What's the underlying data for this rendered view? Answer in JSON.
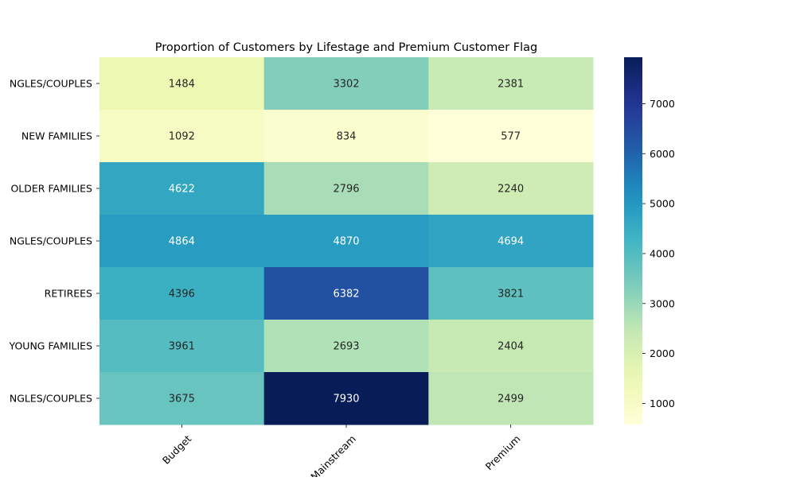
{
  "chart_data": {
    "type": "heatmap",
    "title": "Proportion of Customers by Lifestage and Premium Customer Flag",
    "rows": [
      "NGLES/COUPLES",
      "NEW FAMILIES",
      "OLDER FAMILIES",
      "NGLES/COUPLES",
      "RETIREES",
      "YOUNG FAMILIES",
      "NGLES/COUPLES"
    ],
    "columns": [
      "Budget",
      "Mainstream",
      "Premium"
    ],
    "values": [
      [
        1484,
        3302,
        2381
      ],
      [
        1092,
        834,
        577
      ],
      [
        4622,
        2796,
        2240
      ],
      [
        4864,
        4870,
        4694
      ],
      [
        4396,
        6382,
        3821
      ],
      [
        3961,
        2693,
        2404
      ],
      [
        3675,
        7930,
        2499
      ]
    ],
    "colorbar": {
      "min": 577,
      "max": 7930,
      "ticks": [
        1000,
        2000,
        3000,
        4000,
        5000,
        6000,
        7000
      ],
      "colormap": "YlGnBu"
    },
    "xlabel": "",
    "ylabel": ""
  }
}
